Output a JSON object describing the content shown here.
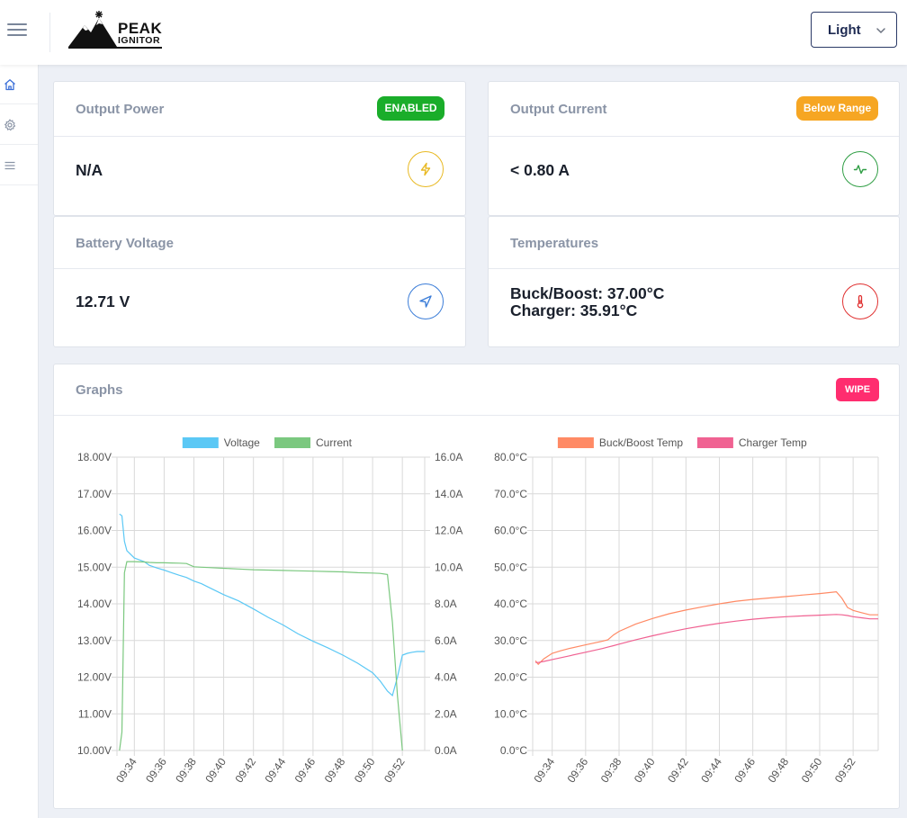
{
  "header": {
    "logo_line1": "PEAK",
    "logo_line2": "IGNITOR",
    "theme_value": "Light",
    "menu_icon": "hamburger-menu-icon"
  },
  "sidebar": {
    "items": [
      {
        "icon": "home-icon"
      },
      {
        "icon": "gear-icon"
      },
      {
        "icon": "list-icon"
      }
    ]
  },
  "cards": {
    "output_power": {
      "title": "Output Power",
      "badge": "ENABLED",
      "badge_color": "#1aad2a",
      "value": "N/A",
      "icon": "lightning-icon",
      "icon_color": "#e8b923"
    },
    "output_current": {
      "title": "Output Current",
      "badge": "Below Range",
      "badge_color": "#f6a623",
      "value": "< 0.80 A",
      "icon": "activity-icon",
      "icon_color": "#2f9e44"
    },
    "battery_voltage": {
      "title": "Battery Voltage",
      "value": "12.71 V",
      "icon": "navigation-icon",
      "icon_color": "#3b7dd8"
    },
    "temperatures": {
      "title": "Temperatures",
      "line1": "Buck/Boost: 37.00°C",
      "line2": "Charger: 35.91°C",
      "icon": "thermometer-icon",
      "icon_color": "#e03131"
    }
  },
  "graphs": {
    "title": "Graphs",
    "wipe_label": "WIPE",
    "wipe_color": "#ff2d6f"
  },
  "chart_data": [
    {
      "type": "line",
      "x": [
        "09:33:00",
        "09:33:10",
        "09:33:20",
        "09:33:30",
        "09:34:00",
        "09:34:40",
        "09:35:00",
        "09:35:30",
        "09:36:00",
        "09:36:30",
        "09:37:00",
        "09:37:30",
        "09:38:00",
        "09:38:30",
        "09:39:00",
        "09:40:00",
        "09:41:00",
        "09:42:00",
        "09:43:00",
        "09:44:00",
        "09:45:00",
        "09:46:00",
        "09:47:00",
        "09:48:00",
        "09:49:00",
        "09:50:00",
        "09:50:30",
        "09:51:00",
        "09:51:20",
        "09:51:40",
        "09:52:00",
        "09:52:20",
        "09:52:40",
        "09:53:00",
        "09:53:30"
      ],
      "x_ticks": [
        "09:34",
        "09:36",
        "09:38",
        "09:40",
        "09:42",
        "09:44",
        "09:46",
        "09:48",
        "09:50",
        "09:52"
      ],
      "series": [
        {
          "name": "Voltage",
          "axis": "left",
          "color": "#5bc8f5",
          "values": [
            16.45,
            16.4,
            15.7,
            15.45,
            15.25,
            15.15,
            15.05,
            14.98,
            14.92,
            14.85,
            14.78,
            14.72,
            14.62,
            14.55,
            14.45,
            14.25,
            14.08,
            13.86,
            13.63,
            13.42,
            13.18,
            12.98,
            12.8,
            12.6,
            12.38,
            12.12,
            11.9,
            11.62,
            11.5,
            12.0,
            12.6,
            12.65,
            12.68,
            12.7,
            12.7
          ]
        },
        {
          "name": "Current",
          "axis": "right",
          "color": "#7bc87f",
          "values": [
            0.0,
            1.0,
            9.7,
            10.3,
            10.3,
            10.28,
            10.26,
            10.24,
            10.24,
            10.23,
            10.22,
            10.2,
            10.02,
            10.0,
            9.98,
            9.94,
            9.9,
            9.86,
            9.84,
            9.82,
            9.8,
            9.78,
            9.76,
            9.74,
            9.7,
            9.68,
            9.66,
            9.6,
            7.0,
            3.0,
            0.0,
            null,
            null,
            null,
            null
          ]
        }
      ],
      "left_axis": {
        "min": 10,
        "max": 18,
        "ticks": [
          "18.00V",
          "17.00V",
          "16.00V",
          "15.00V",
          "14.00V",
          "13.00V",
          "12.00V",
          "11.00V",
          "10.00V"
        ]
      },
      "right_axis": {
        "min": 0,
        "max": 16,
        "ticks": [
          "16.0A",
          "14.0A",
          "12.0A",
          "10.0A",
          "8.0A",
          "6.0A",
          "4.0A",
          "2.0A",
          "0.0A"
        ]
      },
      "legend": "top",
      "grid": true
    },
    {
      "type": "line",
      "x": [
        "09:33:00",
        "09:33:10",
        "09:33:30",
        "09:34:00",
        "09:34:30",
        "09:35:00",
        "09:36:00",
        "09:37:00",
        "09:37:20",
        "09:37:40",
        "09:38:00",
        "09:39:00",
        "09:40:00",
        "09:41:00",
        "09:42:00",
        "09:43:00",
        "09:44:00",
        "09:45:00",
        "09:46:00",
        "09:47:00",
        "09:48:00",
        "09:49:00",
        "09:50:00",
        "09:51:00",
        "09:51:20",
        "09:51:40",
        "09:52:00",
        "09:52:30",
        "09:53:00",
        "09:53:30"
      ],
      "x_ticks": [
        "09:34",
        "09:36",
        "09:38",
        "09:40",
        "09:42",
        "09:44",
        "09:46",
        "09:48",
        "09:50",
        "09:52"
      ],
      "series": [
        {
          "name": "Buck/Boost Temp",
          "color": "#ff8a65",
          "values": [
            24.5,
            23.5,
            25.0,
            26.5,
            27.2,
            27.8,
            28.8,
            29.8,
            30.2,
            31.5,
            32.5,
            34.5,
            36.0,
            37.3,
            38.3,
            39.2,
            40.0,
            40.7,
            41.2,
            41.6,
            42.0,
            42.4,
            42.8,
            43.3,
            41.5,
            39.0,
            38.2,
            37.6,
            37.0,
            37.0
          ]
        },
        {
          "name": "Charger Temp",
          "color": "#f06292",
          "values": [
            24.0,
            24.0,
            24.3,
            24.8,
            25.3,
            25.8,
            26.8,
            27.8,
            28.2,
            28.6,
            29.0,
            30.2,
            31.3,
            32.3,
            33.2,
            34.0,
            34.7,
            35.3,
            35.8,
            36.2,
            36.5,
            36.7,
            36.9,
            37.1,
            37.0,
            36.8,
            36.5,
            36.2,
            35.9,
            35.9
          ]
        }
      ],
      "left_axis": {
        "min": 0,
        "max": 80,
        "ticks": [
          "80.0°C",
          "70.0°C",
          "60.0°C",
          "50.0°C",
          "40.0°C",
          "30.0°C",
          "20.0°C",
          "10.0°C",
          "0.0°C"
        ]
      },
      "legend": "top",
      "grid": true
    }
  ]
}
